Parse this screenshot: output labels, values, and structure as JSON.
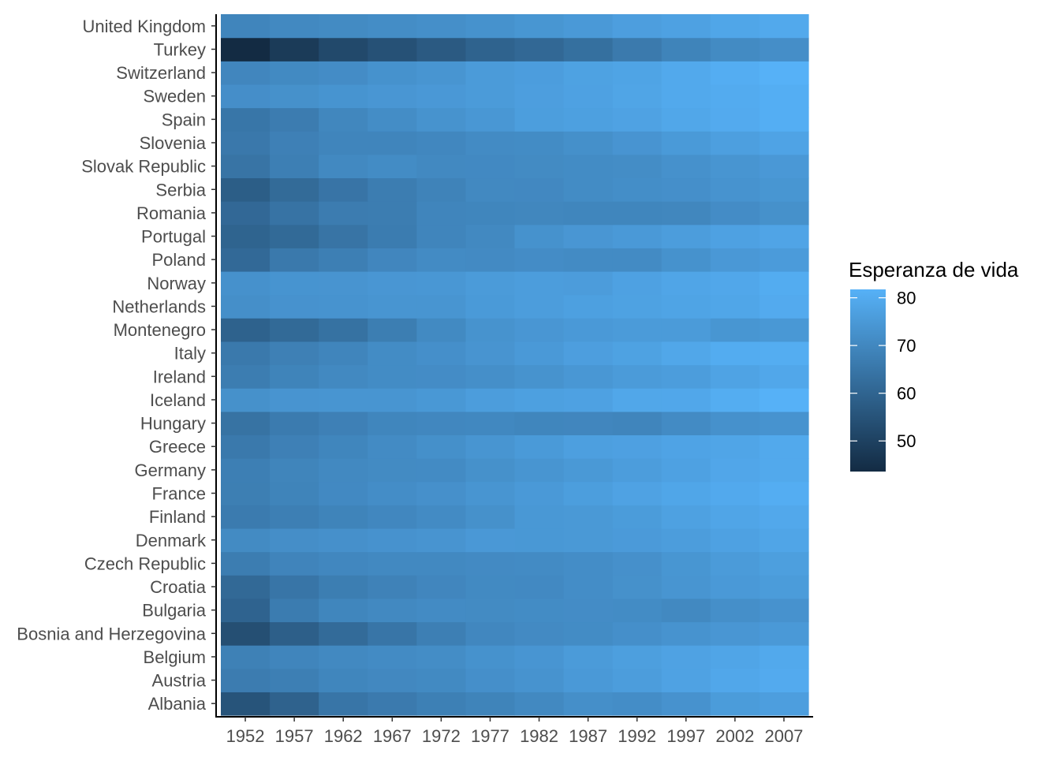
{
  "chart_data": {
    "type": "heatmap",
    "x": [
      "1952",
      "1957",
      "1962",
      "1967",
      "1972",
      "1977",
      "1982",
      "1987",
      "1992",
      "1997",
      "2002",
      "2007"
    ],
    "y": [
      "Albania",
      "Austria",
      "Belgium",
      "Bosnia and Herzegovina",
      "Bulgaria",
      "Croatia",
      "Czech Republic",
      "Denmark",
      "Finland",
      "France",
      "Germany",
      "Greece",
      "Hungary",
      "Iceland",
      "Ireland",
      "Italy",
      "Montenegro",
      "Netherlands",
      "Norway",
      "Poland",
      "Portugal",
      "Romania",
      "Serbia",
      "Slovak Republic",
      "Slovenia",
      "Spain",
      "Sweden",
      "Switzerland",
      "Turkey",
      "United Kingdom"
    ],
    "values": [
      [
        55.2,
        59.3,
        64.8,
        66.2,
        67.7,
        68.9,
        70.4,
        72.0,
        71.6,
        73.0,
        75.7,
        76.4
      ],
      [
        66.8,
        67.5,
        69.5,
        70.1,
        70.6,
        72.2,
        73.2,
        74.9,
        76.0,
        77.5,
        79.0,
        79.8
      ],
      [
        68.0,
        69.2,
        70.3,
        70.9,
        71.4,
        72.8,
        73.9,
        75.4,
        76.5,
        77.5,
        78.3,
        79.4
      ],
      [
        53.8,
        58.5,
        61.9,
        64.8,
        67.5,
        69.9,
        70.7,
        71.1,
        72.2,
        73.2,
        74.1,
        74.9
      ],
      [
        59.6,
        66.6,
        69.5,
        70.4,
        70.9,
        70.8,
        71.1,
        71.3,
        71.2,
        70.3,
        72.1,
        73.0
      ],
      [
        61.2,
        64.8,
        67.1,
        68.5,
        69.6,
        70.6,
        70.5,
        71.5,
        72.5,
        73.7,
        74.9,
        75.7
      ],
      [
        66.9,
        69.0,
        69.9,
        70.4,
        70.3,
        70.7,
        71.0,
        71.6,
        72.4,
        74.0,
        75.5,
        76.5
      ],
      [
        70.8,
        71.8,
        72.4,
        73.0,
        73.5,
        74.7,
        74.6,
        74.8,
        75.3,
        76.1,
        77.2,
        78.3
      ],
      [
        66.5,
        67.5,
        68.8,
        69.8,
        70.9,
        72.5,
        74.6,
        74.8,
        75.7,
        77.1,
        78.4,
        79.3
      ],
      [
        67.4,
        68.9,
        70.5,
        71.6,
        72.4,
        73.8,
        74.9,
        76.3,
        77.5,
        78.6,
        79.6,
        80.7
      ],
      [
        67.5,
        69.1,
        70.3,
        70.8,
        71.0,
        72.5,
        73.8,
        74.8,
        76.1,
        77.3,
        78.7,
        79.4
      ],
      [
        65.9,
        67.9,
        69.5,
        71.0,
        72.3,
        73.7,
        75.2,
        76.7,
        77.0,
        77.9,
        78.3,
        79.5
      ],
      [
        64.0,
        66.4,
        67.9,
        69.5,
        69.8,
        70.0,
        69.4,
        69.6,
        69.2,
        71.0,
        72.6,
        73.3
      ],
      [
        72.5,
        73.5,
        73.7,
        73.7,
        74.5,
        76.1,
        76.9,
        77.2,
        78.8,
        79.0,
        80.5,
        81.8
      ],
      [
        66.9,
        68.9,
        70.3,
        71.1,
        71.3,
        72.0,
        73.1,
        74.4,
        75.5,
        76.1,
        77.8,
        78.9
      ],
      [
        65.9,
        67.8,
        69.2,
        71.1,
        72.2,
        73.5,
        75.0,
        76.4,
        77.4,
        78.8,
        80.2,
        80.5
      ],
      [
        59.2,
        61.4,
        63.7,
        67.2,
        70.6,
        73.1,
        74.1,
        74.9,
        75.4,
        75.4,
        73.98,
        74.5
      ],
      [
        72.1,
        73.0,
        73.2,
        73.8,
        73.8,
        75.2,
        76.1,
        76.8,
        77.4,
        78.0,
        78.5,
        79.8
      ],
      [
        72.7,
        73.4,
        73.5,
        74.1,
        74.3,
        75.4,
        76.0,
        75.9,
        77.3,
        78.3,
        79.0,
        80.2
      ],
      [
        61.3,
        65.8,
        67.6,
        69.6,
        70.9,
        70.7,
        71.3,
        71.0,
        71.0,
        72.8,
        74.7,
        75.6
      ],
      [
        59.8,
        61.5,
        64.4,
        66.6,
        69.3,
        70.4,
        72.8,
        74.1,
        74.9,
        75.97,
        77.3,
        78.1
      ],
      [
        61.1,
        64.1,
        66.8,
        67.0,
        69.2,
        69.5,
        69.7,
        69.5,
        69.4,
        69.7,
        71.3,
        72.5
      ],
      [
        58.0,
        61.7,
        64.5,
        66.9,
        68.7,
        70.3,
        70.2,
        71.2,
        71.7,
        72.2,
        73.2,
        74.0
      ],
      [
        64.4,
        67.5,
        70.3,
        71.1,
        70.3,
        70.5,
        70.8,
        71.1,
        71.4,
        72.7,
        73.8,
        74.7
      ],
      [
        65.6,
        67.9,
        69.2,
        69.2,
        69.8,
        70.97,
        71.1,
        72.3,
        73.6,
        75.1,
        76.7,
        77.9
      ],
      [
        64.9,
        66.7,
        69.7,
        71.4,
        73.1,
        74.4,
        76.3,
        76.9,
        77.6,
        78.8,
        79.8,
        80.9
      ],
      [
        71.9,
        72.5,
        73.4,
        74.2,
        74.7,
        75.4,
        76.4,
        77.2,
        78.2,
        79.4,
        80.0,
        80.9
      ],
      [
        69.6,
        70.6,
        71.3,
        72.8,
        73.8,
        75.4,
        76.2,
        77.4,
        78.0,
        79.4,
        80.6,
        81.7
      ],
      [
        43.6,
        48.1,
        52.1,
        54.3,
        57.0,
        59.5,
        61.0,
        63.1,
        66.1,
        68.8,
        70.8,
        71.8
      ],
      [
        69.2,
        70.4,
        70.8,
        71.4,
        72.0,
        72.8,
        74.0,
        75.0,
        76.4,
        77.2,
        78.5,
        79.4
      ]
    ],
    "color_scale": {
      "low": "#132B43",
      "high": "#56B1F7",
      "min": 43.585,
      "max": 81.757
    },
    "legend": {
      "title": "Esperanza de vida",
      "ticks": [
        50,
        60,
        70,
        80
      ],
      "position": "right"
    },
    "title": "",
    "xlabel": "",
    "ylabel": "",
    "grid": false
  }
}
